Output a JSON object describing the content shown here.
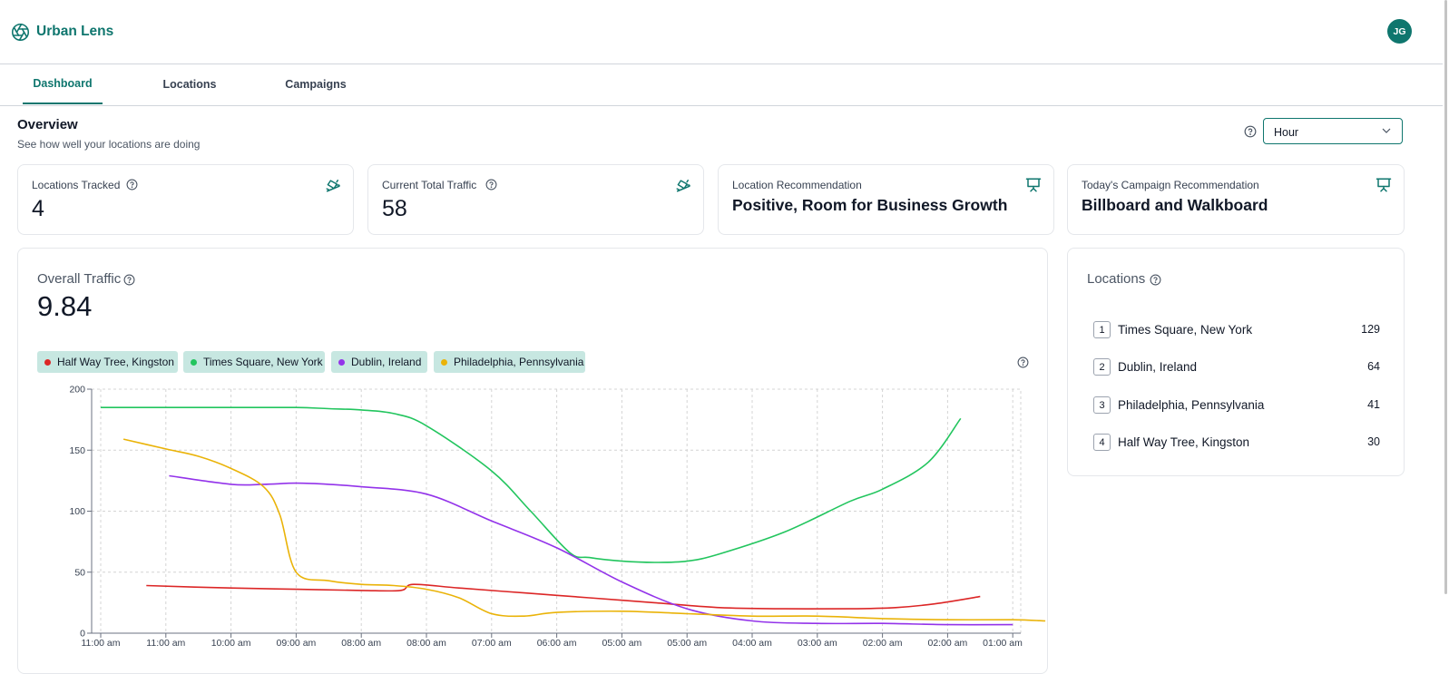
{
  "app": {
    "name": "Urban Lens",
    "user_initials": "JG"
  },
  "tabs": [
    {
      "label": "Dashboard",
      "active": true
    },
    {
      "label": "Locations",
      "active": false
    },
    {
      "label": "Campaigns",
      "active": false
    }
  ],
  "overview": {
    "title": "Overview",
    "subtitle": "See how well your locations are doing",
    "period_selected": "Hour"
  },
  "stats": [
    {
      "label": "Locations Tracked",
      "value": "4",
      "icon": "cctv-camera-icon"
    },
    {
      "label": "Current Total Traffic",
      "value": "58",
      "icon": "cctv-camera-icon"
    },
    {
      "label": "Location Recommendation",
      "value": "Positive, Room for Business Growth",
      "icon": "presentation-icon"
    },
    {
      "label": "Today's Campaign Recommendation",
      "value": "Billboard and Walkboard",
      "icon": "presentation-icon"
    }
  ],
  "traffic": {
    "label": "Overall Traffic",
    "value": "9.84"
  },
  "chart_data": {
    "type": "line",
    "title": "Overall Traffic",
    "xlabel": "",
    "ylabel": "",
    "ylim": [
      0,
      200
    ],
    "yticks": [
      0,
      50,
      100,
      150,
      200
    ],
    "grid": true,
    "legend_placement": "top-left",
    "x_ticks": [
      "11:00 am",
      "11:00 am",
      "10:00 am",
      "09:00 am",
      "08:00 am",
      "08:00 am",
      "07:00 am",
      "06:00 am",
      "05:00 am",
      "05:00 am",
      "04:00 am",
      "03:00 am",
      "02:00 am",
      "02:00 am",
      "01:00 am"
    ],
    "x_range": [
      0,
      14.5
    ],
    "series": [
      {
        "name": "Half Way Tree, Kingston",
        "color": "#dc2626",
        "x": [
          0.7,
          2,
          3,
          4,
          4.6,
          4.8,
          5.5,
          6.5,
          7.5,
          8.5,
          9.5,
          10.5,
          11.5,
          12.2,
          12.8,
          13.5
        ],
        "y": [
          39,
          37,
          36,
          35,
          35,
          40,
          37,
          33,
          29,
          25,
          21,
          20,
          20,
          21,
          24,
          30
        ]
      },
      {
        "name": "Times Square, New York",
        "color": "#22c55e",
        "x": [
          0,
          1,
          2,
          3,
          3.5,
          4,
          4.5,
          5,
          6,
          6.6,
          7.2,
          7.5,
          8,
          8.5,
          9,
          9.5,
          10.5,
          11.5,
          12,
          12.7,
          13.2
        ],
        "y": [
          185,
          185,
          185,
          185,
          184,
          183,
          180,
          170,
          133,
          100,
          66,
          62,
          59,
          58,
          59,
          65,
          83,
          108,
          118,
          140,
          176
        ]
      },
      {
        "name": "Dublin, Ireland",
        "color": "#9333ea",
        "x": [
          1.05,
          2,
          2.5,
          3,
          3.5,
          4,
          5,
          6,
          7,
          8,
          9,
          10,
          11,
          12,
          13,
          14
        ],
        "y": [
          129,
          122,
          122,
          123,
          122,
          120,
          114,
          92,
          70,
          42,
          20,
          10,
          8,
          8,
          7,
          7
        ]
      },
      {
        "name": "Philadelphia, Pennsylvania",
        "color": "#eab308",
        "x": [
          0.35,
          1,
          1.5,
          2,
          2.5,
          2.75,
          3,
          3.5,
          4,
          4.5,
          5,
          5.5,
          6,
          6.5,
          7,
          8,
          9,
          10,
          11,
          12,
          13,
          14,
          14.5
        ],
        "y": [
          159,
          151,
          145,
          135,
          120,
          97,
          50,
          43,
          40,
          39,
          36,
          29,
          16,
          14,
          17,
          18,
          16,
          14,
          14,
          12,
          11,
          11,
          10
        ]
      }
    ]
  },
  "locations": {
    "label": "Locations",
    "items": [
      {
        "rank": "1",
        "name": "Times Square, New York",
        "count": "129"
      },
      {
        "rank": "2",
        "name": "Dublin, Ireland",
        "count": "64"
      },
      {
        "rank": "3",
        "name": "Philadelphia, Pennsylvania",
        "count": "41"
      },
      {
        "rank": "4",
        "name": "Half Way Tree, Kingston",
        "count": "30"
      }
    ]
  }
}
